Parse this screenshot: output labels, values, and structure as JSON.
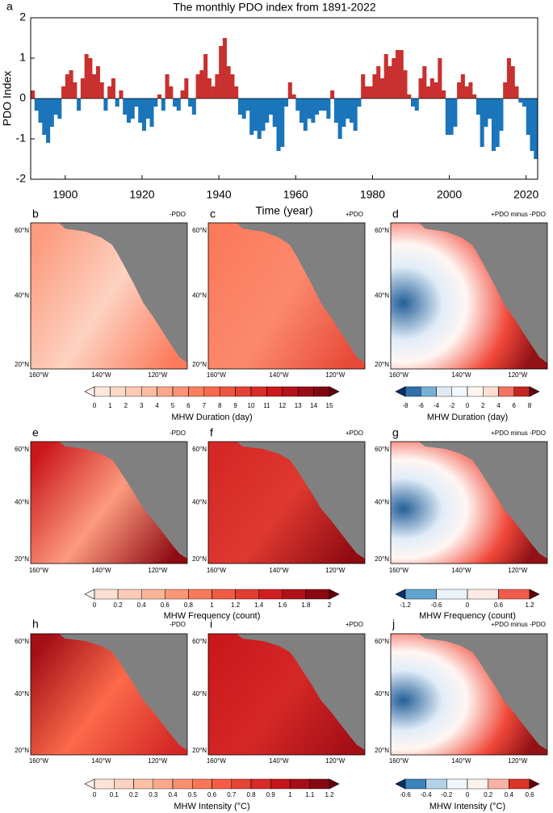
{
  "chart_data": {
    "type": "bar",
    "panel_label": "a",
    "title": "The monthly PDO index from 1891-2022",
    "x_label": "Time (year)",
    "y_label": "PDO Index",
    "x": [
      1891,
      1892,
      1893,
      1894,
      1895,
      1896,
      1897,
      1898,
      1899,
      1900,
      1901,
      1902,
      1903,
      1904,
      1905,
      1906,
      1907,
      1908,
      1909,
      1910,
      1911,
      1912,
      1913,
      1914,
      1915,
      1916,
      1917,
      1918,
      1919,
      1920,
      1921,
      1922,
      1923,
      1924,
      1925,
      1926,
      1927,
      1928,
      1929,
      1930,
      1931,
      1932,
      1933,
      1934,
      1935,
      1936,
      1937,
      1938,
      1939,
      1940,
      1941,
      1942,
      1943,
      1944,
      1945,
      1946,
      1947,
      1948,
      1949,
      1950,
      1951,
      1952,
      1953,
      1954,
      1955,
      1956,
      1957,
      1958,
      1959,
      1960,
      1961,
      1962,
      1963,
      1964,
      1965,
      1966,
      1967,
      1968,
      1969,
      1970,
      1971,
      1972,
      1973,
      1974,
      1975,
      1976,
      1977,
      1978,
      1979,
      1980,
      1981,
      1982,
      1983,
      1984,
      1985,
      1986,
      1987,
      1988,
      1989,
      1990,
      1991,
      1992,
      1993,
      1994,
      1995,
      1996,
      1997,
      1998,
      1999,
      2000,
      2001,
      2002,
      2003,
      2004,
      2005,
      2006,
      2007,
      2008,
      2009,
      2010,
      2011,
      2012,
      2013,
      2014,
      2015,
      2016,
      2017,
      2018,
      2019,
      2020,
      2021,
      2022
    ],
    "values": [
      0.2,
      -0.3,
      -0.6,
      -0.9,
      -1.1,
      -0.7,
      -0.4,
      -0.5,
      0.3,
      0.6,
      0.7,
      0.4,
      -0.3,
      0.5,
      1.1,
      1.0,
      0.6,
      0.8,
      0.4,
      -0.3,
      0.3,
      0.5,
      -0.2,
      0.2,
      -0.4,
      -0.6,
      -0.5,
      -0.2,
      -0.6,
      -0.8,
      -0.5,
      -0.7,
      -0.2,
      0.1,
      -0.3,
      0.6,
      0.3,
      -0.2,
      -0.3,
      0.2,
      0.5,
      -0.2,
      -0.4,
      0.6,
      0.7,
      1.1,
      0.5,
      0.3,
      0.6,
      1.3,
      1.5,
      0.8,
      0.6,
      0.3,
      -0.4,
      -0.5,
      -0.3,
      -0.9,
      -0.8,
      -1.0,
      -0.8,
      -0.6,
      -0.4,
      -0.7,
      -1.3,
      -1.2,
      -0.2,
      0.4,
      0.1,
      -0.3,
      -0.6,
      -0.8,
      -0.5,
      -0.6,
      -0.4,
      -0.3,
      -0.3,
      -0.5,
      0.2,
      -0.6,
      -1.0,
      -0.7,
      -0.5,
      -0.6,
      -0.8,
      -0.2,
      0.6,
      0.3,
      0.3,
      0.6,
      0.8,
      0.5,
      1.1,
      0.8,
      1.0,
      1.2,
      1.2,
      0.7,
      0.1,
      -0.2,
      -0.3,
      0.5,
      0.8,
      0.3,
      0.5,
      0.4,
      1.0,
      0.2,
      -0.9,
      -0.9,
      -0.7,
      0.4,
      0.6,
      0.3,
      0.4,
      0.1,
      -0.4,
      -1.2,
      -0.7,
      -0.5,
      -1.3,
      -1.2,
      -0.8,
      0.4,
      1.0,
      0.8,
      0.3,
      -0.1,
      -0.2,
      -0.9,
      -1.3,
      -1.5
    ],
    "positive_color": "#c8312f",
    "negative_color": "#1b75bb",
    "xlim": [
      1891,
      2023
    ],
    "ylim": [
      -2,
      2
    ],
    "xticks": [
      1900,
      1920,
      1940,
      1960,
      1980,
      2000,
      2020
    ],
    "yticks": [
      -2,
      -1,
      0,
      1,
      2
    ]
  },
  "maps": {
    "panels": [
      {
        "label": "b",
        "title": "-PDO"
      },
      {
        "label": "c",
        "title": "+PDO"
      },
      {
        "label": "d",
        "title": "+PDO minus -PDO"
      },
      {
        "label": "e",
        "title": "-PDO"
      },
      {
        "label": "f",
        "title": "+PDO"
      },
      {
        "label": "g",
        "title": "+PDO minus -PDO"
      },
      {
        "label": "h",
        "title": "-PDO"
      },
      {
        "label": "i",
        "title": "+PDO"
      },
      {
        "label": "j",
        "title": "+PDO minus -PDO"
      }
    ],
    "lat_labels": [
      "60°N",
      "40°N",
      "20°N"
    ],
    "lon_labels": [
      "160°W",
      "140°W",
      "120°W"
    ]
  },
  "colorbars": [
    {
      "label": "MHW Duration (day)",
      "kind": "sequential",
      "ticks": [
        0,
        1,
        2,
        3,
        4,
        5,
        6,
        7,
        8,
        9,
        10,
        11,
        12,
        13,
        14,
        15
      ]
    },
    {
      "label": "MHW Duration (day)",
      "kind": "diverging",
      "ticks": [
        -8,
        -6,
        -4,
        -2,
        0,
        2,
        4,
        6,
        8
      ]
    },
    {
      "label": "MHW Frequency (count)",
      "kind": "sequential",
      "ticks": [
        0,
        0.2,
        0.4,
        0.6,
        0.8,
        1,
        1.2,
        1.4,
        1.6,
        1.8,
        2
      ]
    },
    {
      "label": "MHW Frequency (count)",
      "kind": "diverging",
      "ticks": [
        -1.2,
        -0.6,
        0,
        0.6,
        1.2
      ]
    },
    {
      "label": "MHW Intensity (°C)",
      "kind": "sequential",
      "ticks": [
        0,
        0.1,
        0.2,
        0.3,
        0.4,
        0.5,
        0.6,
        0.7,
        0.8,
        0.9,
        1,
        1.1,
        1.2
      ]
    },
    {
      "label": "MHW Intensity (°C)",
      "kind": "diverging",
      "ticks": [
        -0.6,
        -0.4,
        -0.2,
        0,
        0.2,
        0.4,
        0.6
      ]
    }
  ]
}
